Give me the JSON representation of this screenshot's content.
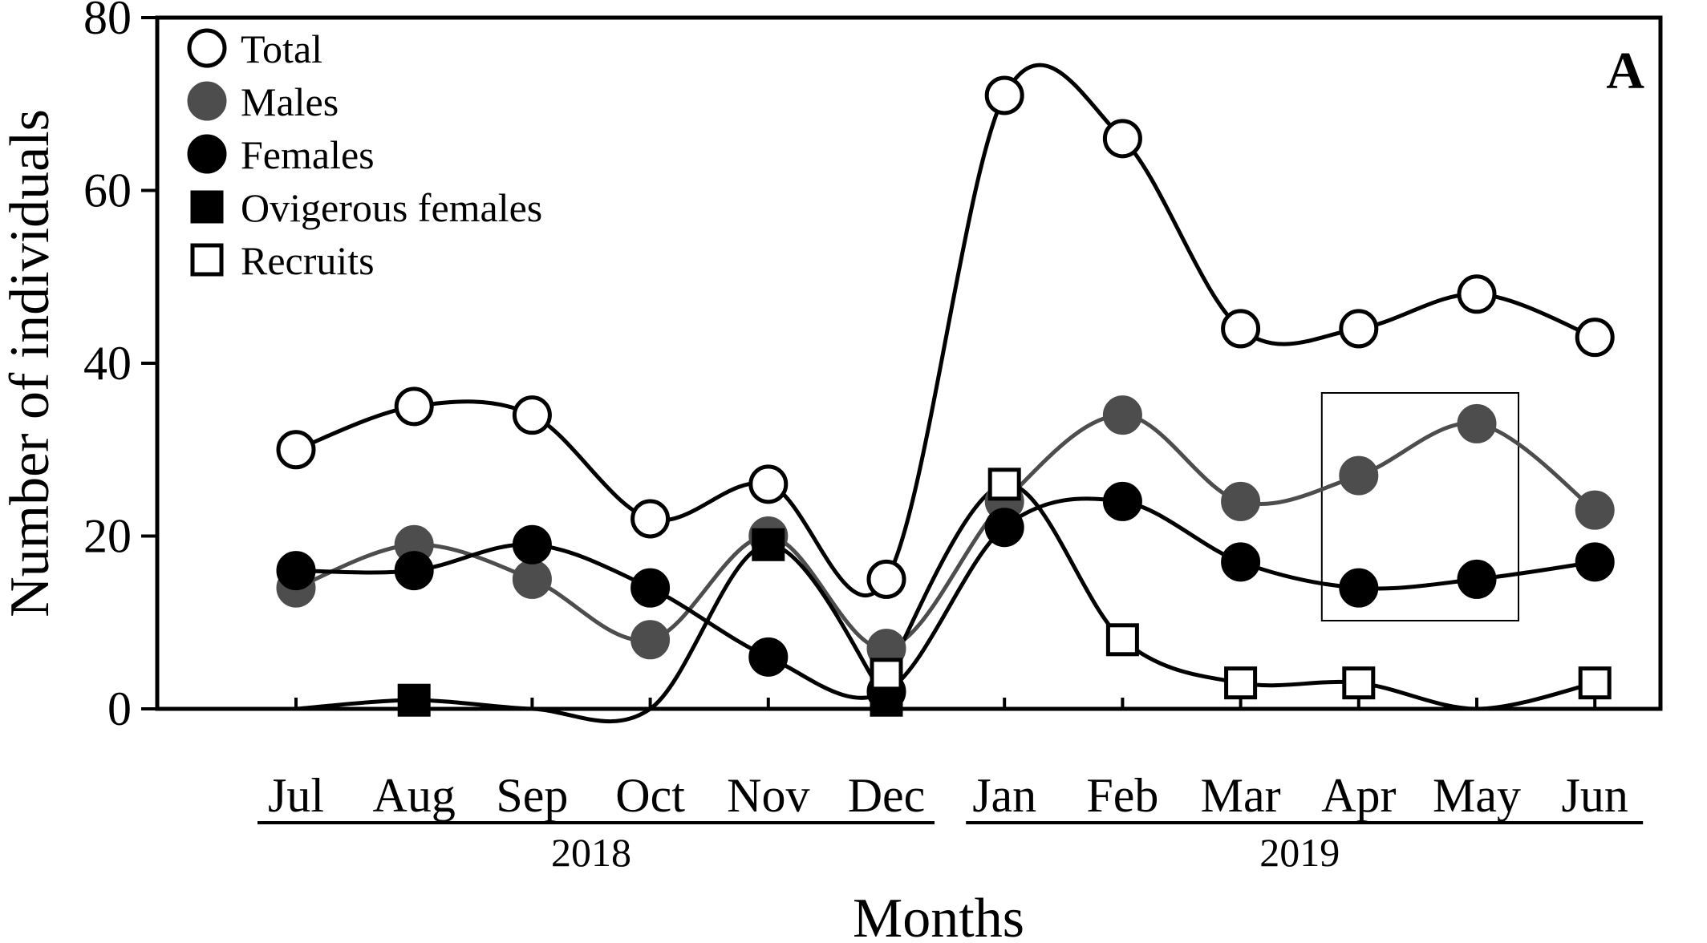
{
  "chart_data": {
    "type": "line",
    "panel_label": "A",
    "xlabel": "Months",
    "ylabel": "Number of individuals",
    "ylim": [
      0,
      80
    ],
    "yticks": [
      0,
      20,
      40,
      60,
      80
    ],
    "grid": false,
    "legend_position": "top-left",
    "categories": [
      "Jul",
      "Aug",
      "Sep",
      "Oct",
      "Nov",
      "Dec",
      "Jan",
      "Feb",
      "Mar",
      "Apr",
      "May",
      "Jun"
    ],
    "year_groups": [
      {
        "label": "2018",
        "from": "Jul",
        "to": "Dec"
      },
      {
        "label": "2019",
        "from": "Jan",
        "to": "Jun"
      }
    ],
    "highlight_box": {
      "from": "Apr",
      "to": "May"
    },
    "series": [
      {
        "name": "Total",
        "marker": "circle",
        "fill": "#ffffff",
        "line": "#000000",
        "values": [
          30,
          35,
          34,
          22,
          26,
          15,
          71,
          66,
          44,
          44,
          48,
          43
        ]
      },
      {
        "name": "Males",
        "marker": "circle",
        "fill": "#4d4d4d",
        "line": "#4d4d4d",
        "values": [
          14,
          19,
          15,
          8,
          20,
          7,
          24,
          34,
          24,
          27,
          33,
          23
        ]
      },
      {
        "name": "Females",
        "marker": "circle",
        "fill": "#000000",
        "line": "#000000",
        "values": [
          16,
          16,
          19,
          14,
          6,
          2,
          21,
          24,
          17,
          14,
          15,
          17
        ]
      },
      {
        "name": "Ovigerous females",
        "marker": "square",
        "fill": "#000000",
        "line": "#000000",
        "values": [
          0,
          1,
          0,
          0,
          19,
          1,
          null,
          null,
          null,
          null,
          null,
          null
        ]
      },
      {
        "name": "Recruits",
        "marker": "square",
        "fill": "#ffffff",
        "line": "#000000",
        "values": [
          null,
          null,
          null,
          null,
          null,
          4,
          26,
          8,
          3,
          3,
          0,
          3
        ]
      }
    ]
  }
}
